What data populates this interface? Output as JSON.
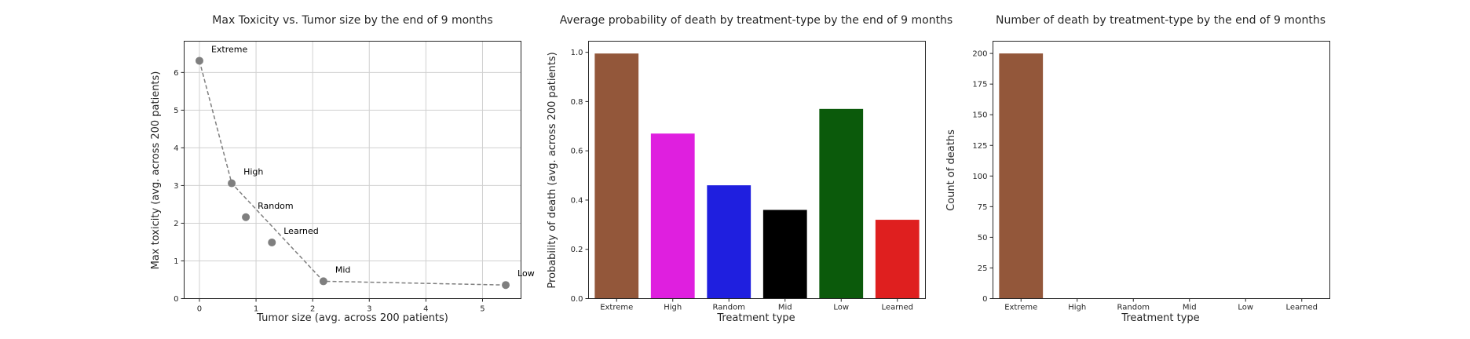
{
  "chart_data": [
    {
      "type": "scatter",
      "title": "Max Toxicity vs. Tumor size by the end of 9 months",
      "xlabel": "Tumor size (avg. across 200 patients)",
      "ylabel": "Max toxicity (avg. across 200 patients)",
      "xlim": [
        -0.27,
        5.68
      ],
      "ylim": [
        0,
        6.83
      ],
      "xticks": [
        0,
        1,
        2,
        3,
        4,
        5
      ],
      "yticks": [
        0,
        1,
        2,
        3,
        4,
        5,
        6
      ],
      "grid": true,
      "marker_color": "#7f7f7f",
      "line_color": "#7f7f7f",
      "points": [
        {
          "label": "Extreme",
          "x": 0.0,
          "y": 6.31
        },
        {
          "label": "High",
          "x": 0.57,
          "y": 3.06
        },
        {
          "label": "Random",
          "x": 0.82,
          "y": 2.16
        },
        {
          "label": "Learned",
          "x": 1.28,
          "y": 1.49
        },
        {
          "label": "Mid",
          "x": 2.19,
          "y": 0.46
        },
        {
          "label": "Low",
          "x": 5.41,
          "y": 0.36
        }
      ],
      "frontier": [
        "Extreme",
        "High",
        "Mid",
        "Low"
      ]
    },
    {
      "type": "bar",
      "title": "Average probability of death by treatment-type by the end of 9 months",
      "xlabel": "Treatment type",
      "ylabel": "Probability of death (avg. across 200 patients)",
      "categories": [
        "Extreme",
        "High",
        "Random",
        "Mid",
        "Low",
        "Learned"
      ],
      "values": [
        0.995,
        0.67,
        0.46,
        0.36,
        0.77,
        0.32
      ],
      "colors": [
        "#93573a",
        "#df1fdf",
        "#1f1fdf",
        "#000000",
        "#0b5a0b",
        "#df1f1f"
      ],
      "ylim": [
        0,
        1.045
      ],
      "yticks": [
        0.0,
        0.2,
        0.4,
        0.6,
        0.8,
        1.0
      ],
      "grid": false
    },
    {
      "type": "bar",
      "title": "Number of death by treatment-type by the end of 9 months",
      "xlabel": "Treatment type",
      "ylabel": "Count of deaths",
      "categories": [
        "Extreme",
        "High",
        "Random",
        "Mid",
        "Low",
        "Learned"
      ],
      "values": [
        200,
        0,
        0,
        0,
        0,
        0
      ],
      "colors": [
        "#93573a",
        "#df1fdf",
        "#1f1fdf",
        "#000000",
        "#0b5a0b",
        "#df1f1f"
      ],
      "ylim": [
        0,
        210
      ],
      "yticks": [
        0,
        25,
        50,
        75,
        100,
        125,
        150,
        175,
        200
      ],
      "grid": false
    }
  ]
}
